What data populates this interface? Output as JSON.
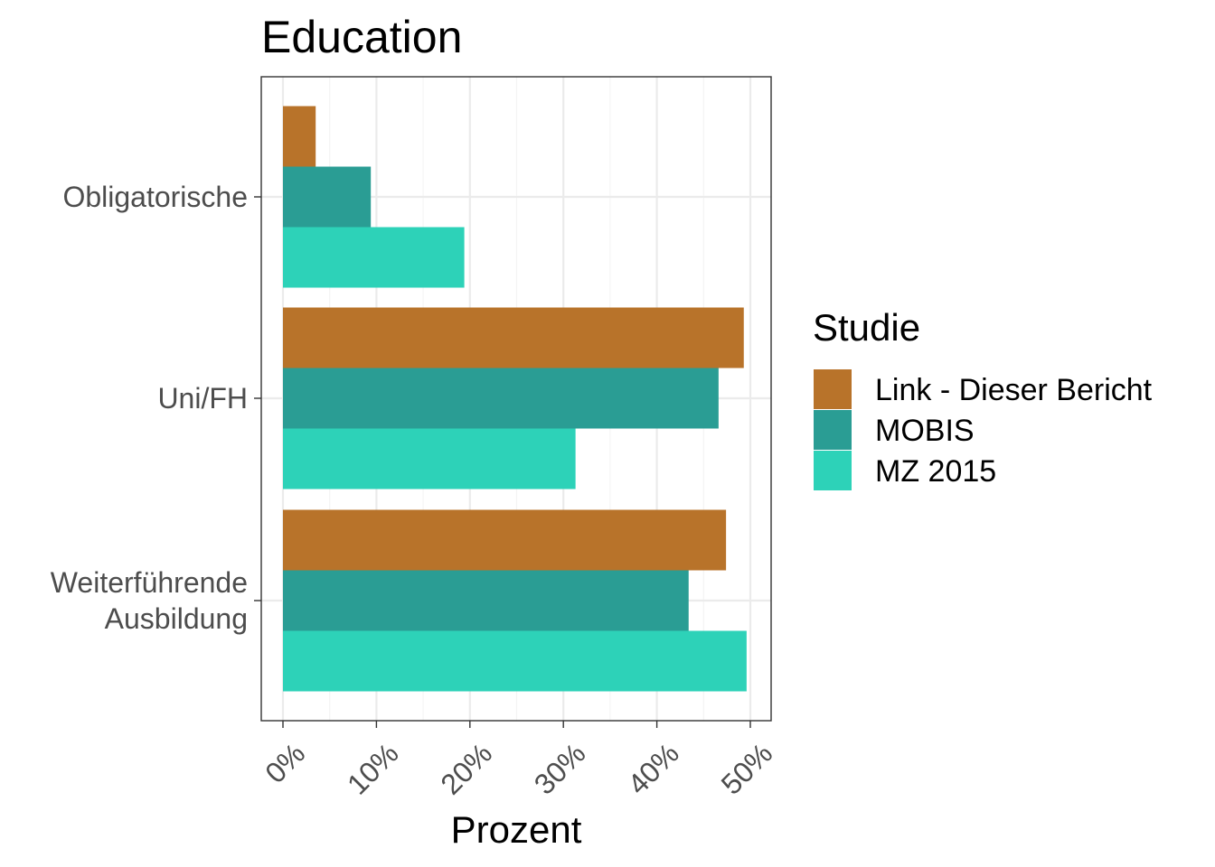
{
  "chart_data": {
    "type": "bar",
    "orientation": "horizontal",
    "title": "Education",
    "xlabel": "Prozent",
    "ylabel": "",
    "xlim": [
      0,
      52
    ],
    "x_ticks": [
      0,
      10,
      20,
      30,
      40,
      50
    ],
    "x_tick_labels": [
      "0%",
      "10%",
      "20%",
      "30%",
      "40%",
      "50%"
    ],
    "categories": [
      "Obligatorische",
      "Uni/FH",
      "Weiterführende Ausbildung"
    ],
    "category_label_lines": [
      [
        "Obligatorische"
      ],
      [
        "Uni/FH"
      ],
      [
        "Weiterführende",
        "Ausbildung"
      ]
    ],
    "series": [
      {
        "name": "Link - Dieser Bericht",
        "color": "#B8732A",
        "values": [
          3.5,
          49.3,
          47.4
        ]
      },
      {
        "name": "MOBIS",
        "color": "#2A9D94",
        "values": [
          9.4,
          46.6,
          43.4
        ]
      },
      {
        "name": "MZ 2015",
        "color": "#2DD2B8",
        "values": [
          19.4,
          31.3,
          49.6
        ]
      }
    ],
    "legend": {
      "title": "Studie",
      "position": "right"
    },
    "grid": true
  }
}
